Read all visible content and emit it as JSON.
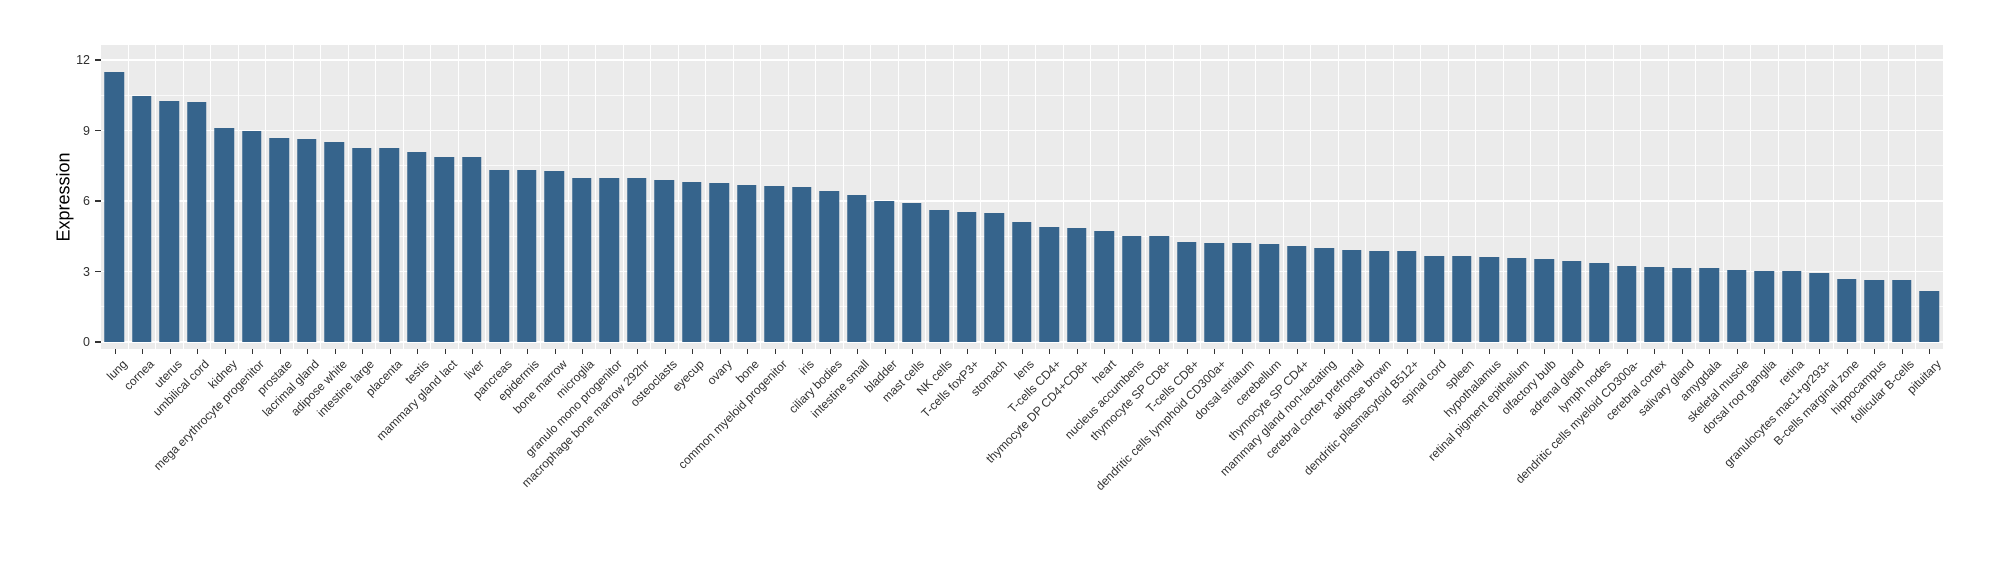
{
  "chart_data": {
    "type": "bar",
    "title": "",
    "xlabel": "",
    "ylabel": "Expression",
    "ylim": [
      0,
      12.6
    ],
    "yticks": [
      0,
      3,
      6,
      9,
      12
    ],
    "grid": {
      "major_breaks": [
        0,
        3,
        6,
        9,
        12
      ],
      "minor_breaks": [
        1.5,
        4.5,
        7.5,
        10.5
      ],
      "style": "ggplot-gray-panel-white-gridlines",
      "vertical_separators": true
    },
    "legend": "none",
    "colors": {
      "bar": "#36648C",
      "panel_background": "#EBEBEB",
      "gridline": "#FFFFFF",
      "axis_text": "#303030",
      "figure_background": "#FFFFFF"
    },
    "categories": [
      "lung",
      "cornea",
      "uterus",
      "umbilical cord",
      "kidney",
      "mega erythrocyte progenitor",
      "prostate",
      "lacrimal gland",
      "adipose white",
      "intestine large",
      "placenta",
      "testis",
      "mammary gland lact",
      "liver",
      "pancreas",
      "epidermis",
      "bone marrow",
      "microglia",
      "granulo mono progenitor",
      "macrophage bone marrow 292hr",
      "osteoclasts",
      "eyecup",
      "ovary",
      "bone",
      "common myeloid progenitor",
      "iris",
      "ciliary bodies",
      "intestine small",
      "bladder",
      "mast cells",
      "NK cells",
      "T-cells foxP3+",
      "stomach",
      "lens",
      "T-cells CD4+",
      "thymocyte DP CD4+CD8+",
      "heart",
      "nucleus accumbens",
      "thymocyte SP CD8+",
      "T-cells CD8+",
      "dendritic cells lymphoid CD300a+",
      "dorsal striatum",
      "cerebellum",
      "thymocyte SP CD4+",
      "mammary gland non-lactating",
      "cerebral cortex prefrontal",
      "adipose brown",
      "dendritic plasmacytoid B512+",
      "spinal cord",
      "spleen",
      "hypothalamus",
      "retinal pigment epithelium",
      "olfactory bulb",
      "adrenal gland",
      "lymph nodes",
      "dendritic cells myeloid CD300a-",
      "cerebral cortex",
      "salivary gland",
      "amygdala",
      "skeletal muscle",
      "dorsal root ganglia",
      "retina",
      "granulocytes mac1+gr293+",
      "B-cells marginal zone",
      "hippocampus",
      "follicular B-cells",
      "pituitary"
    ],
    "values": [
      11.5,
      10.45,
      10.25,
      10.2,
      9.1,
      9.0,
      8.7,
      8.62,
      8.5,
      8.27,
      8.26,
      8.07,
      7.88,
      7.86,
      7.32,
      7.3,
      7.28,
      7.0,
      6.98,
      6.97,
      6.88,
      6.8,
      6.77,
      6.69,
      6.62,
      6.58,
      6.43,
      6.27,
      6.0,
      5.9,
      5.6,
      5.52,
      5.5,
      5.12,
      4.88,
      4.85,
      4.72,
      4.52,
      4.5,
      4.26,
      4.22,
      4.2,
      4.16,
      4.09,
      3.99,
      3.9,
      3.88,
      3.86,
      3.66,
      3.65,
      3.6,
      3.56,
      3.55,
      3.45,
      3.37,
      3.23,
      3.18,
      3.16,
      3.14,
      3.06,
      3.02,
      3.01,
      2.94,
      2.67,
      2.64,
      2.62,
      2.16
    ]
  }
}
